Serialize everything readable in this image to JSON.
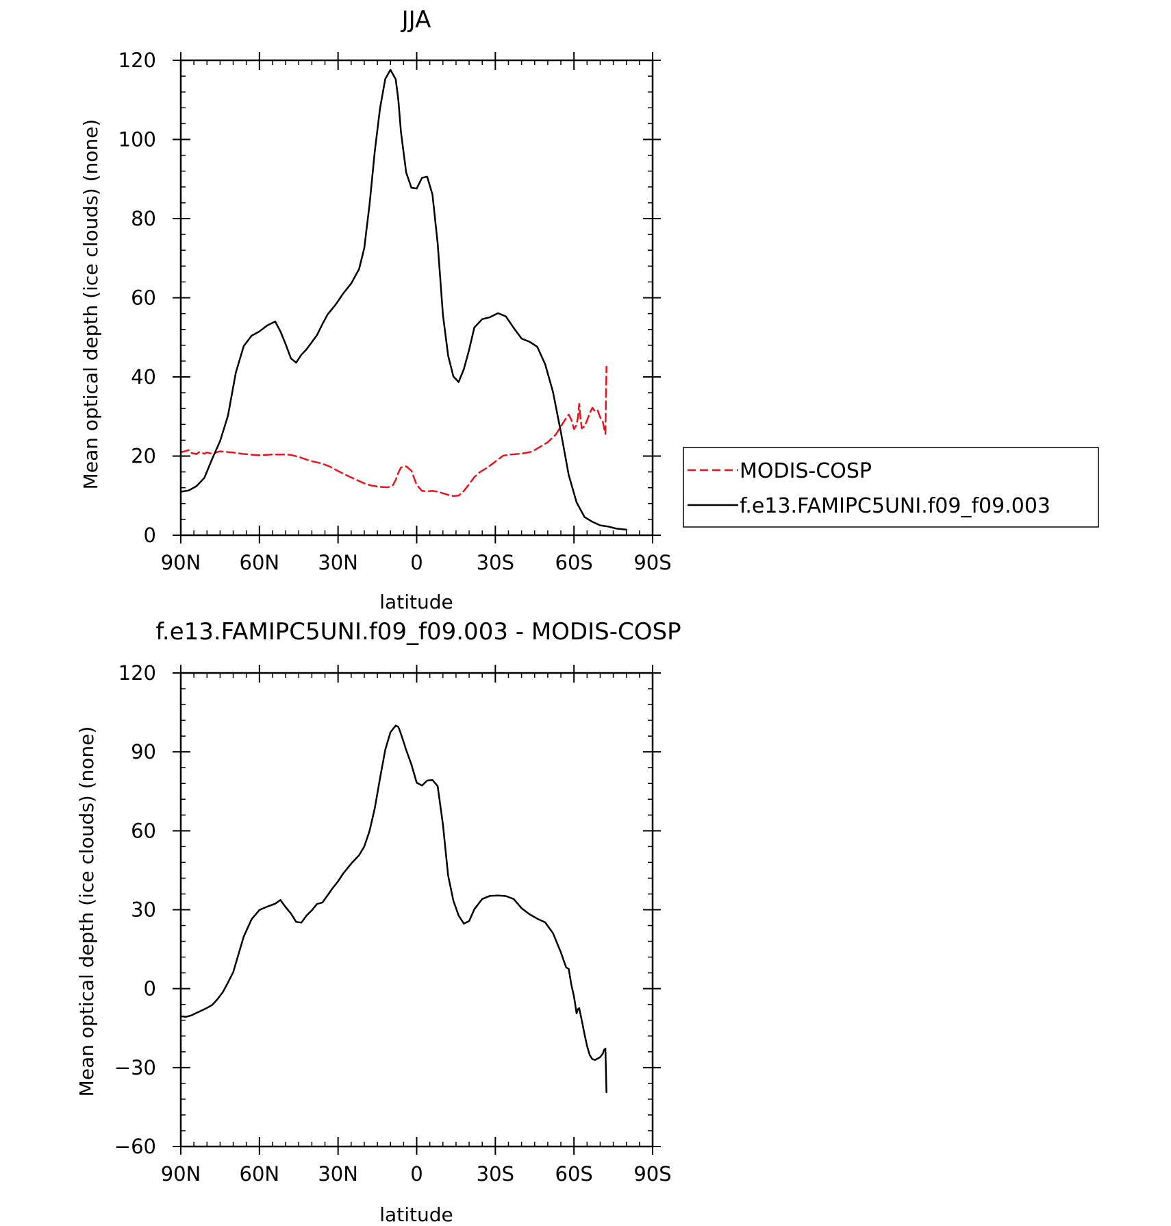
{
  "chart_data": [
    {
      "type": "line",
      "title": "JJA",
      "xlabel": "latitude",
      "ylabel": "Mean optical depth (ice clouds) (none)",
      "xlim": [
        90,
        -90
      ],
      "ylim": [
        0,
        120
      ],
      "x_ticks": [
        90,
        60,
        30,
        0,
        -30,
        -60,
        -90
      ],
      "x_tick_labels": [
        "90N",
        "60N",
        "30N",
        "0",
        "30S",
        "60S",
        "90S"
      ],
      "y_ticks": [
        0,
        20,
        40,
        60,
        80,
        100,
        120
      ],
      "y_tick_labels": [
        "0",
        "20",
        "40",
        "60",
        "80",
        "100",
        "120"
      ],
      "legend": {
        "position": "right",
        "entries": [
          "MODIS-COSP",
          "f.e13.FAMIPC5UNI.f09_f09.003"
        ]
      },
      "series": [
        {
          "name": "MODIS-COSP",
          "color": "#e8141c",
          "dash": "dashed",
          "x": [
            90,
            88.5,
            87,
            86,
            84,
            83,
            81,
            80,
            78,
            75,
            72,
            70,
            67,
            64,
            60,
            55,
            50,
            48,
            45,
            42,
            40,
            36,
            33,
            30,
            25,
            20,
            17,
            14,
            11,
            9,
            8,
            7,
            6,
            4,
            2,
            0,
            -2,
            -4,
            -6,
            -8,
            -10,
            -12,
            -14,
            -16,
            -18,
            -20,
            -22,
            -24,
            -26,
            -28,
            -30,
            -33,
            -36,
            -40,
            -44,
            -47,
            -50,
            -53,
            -55,
            -57,
            -58,
            -59,
            -60,
            -61,
            -61.5,
            -62,
            -62.5,
            -63,
            -64,
            -65,
            -66,
            -67,
            -68,
            -69,
            -70,
            -71,
            -71.5,
            -72,
            -72.4
          ],
          "values": [
            21,
            21.2,
            21.5,
            20.8,
            20.5,
            21,
            20.6,
            20.9,
            20.6,
            21.2,
            21,
            20.9,
            20.6,
            20.4,
            20.2,
            20.4,
            20.4,
            20.3,
            19.8,
            19.1,
            18.7,
            18.1,
            17.3,
            16.2,
            14.6,
            13.1,
            12.5,
            12.2,
            12.1,
            12.7,
            14,
            15.8,
            17.1,
            17.4,
            16.3,
            12.7,
            11.2,
            11.1,
            11.2,
            11,
            10.6,
            10.2,
            9.9,
            10,
            11.2,
            12.9,
            14.7,
            15.9,
            16.7,
            17.6,
            18.6,
            20.1,
            20.4,
            20.6,
            21.1,
            22.3,
            23.5,
            25.4,
            27.5,
            29.6,
            30.5,
            29.2,
            26.8,
            27.9,
            29.8,
            33.2,
            29.5,
            27,
            27.5,
            29,
            30.8,
            32.2,
            31.3,
            31.6,
            29.8,
            28.7,
            27,
            25.6,
            42.6
          ]
        },
        {
          "name": "f.e13.FAMIPC5UNI.f09_f09.003",
          "color": "#000000",
          "dash": "solid",
          "x": [
            90,
            87,
            84,
            81,
            78,
            75,
            72,
            69,
            66,
            63,
            60,
            57,
            54,
            52,
            50,
            48,
            46,
            44,
            42,
            40,
            38,
            36,
            34,
            31,
            28,
            25,
            22,
            20,
            18,
            16,
            14,
            12,
            10,
            8,
            7,
            6,
            4,
            2,
            0,
            -2,
            -4,
            -6,
            -8,
            -10,
            -12,
            -14,
            -16,
            -18,
            -20,
            -22,
            -25,
            -28,
            -31,
            -34,
            -37,
            -40,
            -43,
            -46,
            -49,
            -52,
            -55,
            -58,
            -61,
            -64,
            -67,
            -70,
            -73,
            -76,
            -80
          ],
          "values": [
            11,
            11.3,
            12.4,
            14.5,
            19.3,
            23.8,
            30.2,
            41.1,
            47.8,
            50.4,
            51.5,
            53,
            54,
            51.5,
            48.3,
            44.7,
            43.6,
            45.6,
            47,
            48.8,
            50.6,
            53.3,
            55.8,
            58.2,
            61.1,
            63.6,
            67.2,
            72.5,
            83.5,
            97,
            107.8,
            115.3,
            117.6,
            115.2,
            110,
            101.9,
            91.6,
            87.8,
            87.6,
            90.3,
            90.6,
            86.1,
            73.8,
            55.7,
            45.4,
            40.1,
            38.7,
            42,
            46.9,
            52.5,
            54.6,
            55.1,
            56.1,
            55.3,
            52.4,
            49.7,
            48.9,
            47.6,
            43.2,
            36.2,
            26.1,
            15.2,
            8.3,
            4.6,
            3.4,
            2.5,
            2.2,
            1.7,
            1.4
          ]
        }
      ]
    },
    {
      "type": "line",
      "title": "f.e13.FAMIPC5UNI.f09_f09.003 - MODIS-COSP",
      "xlabel": "latitude",
      "ylabel": "Mean optical depth (ice clouds) (none)",
      "xlim": [
        90,
        -90
      ],
      "ylim": [
        -60,
        120
      ],
      "x_ticks": [
        90,
        60,
        30,
        0,
        -30,
        -60,
        -90
      ],
      "x_tick_labels": [
        "90N",
        "60N",
        "30N",
        "0",
        "30S",
        "60S",
        "90S"
      ],
      "y_ticks": [
        -60,
        -30,
        0,
        30,
        60,
        90,
        120
      ],
      "y_tick_labels": [
        "−60",
        "−30",
        "0",
        "30",
        "60",
        "90",
        "120"
      ],
      "series": [
        {
          "name": "f.e13.FAMIPC5UNI.f09_f09.003 - MODIS-COSP",
          "color": "#000000",
          "dash": "solid",
          "x": [
            90,
            88,
            86,
            84,
            82,
            80,
            78,
            76,
            74,
            72,
            70,
            68,
            66,
            63,
            60,
            57,
            54,
            52,
            50,
            48,
            46,
            44,
            42,
            40,
            38,
            36,
            34,
            32,
            30,
            28,
            25,
            22,
            20,
            18,
            16,
            14,
            12,
            10,
            8,
            7,
            6,
            4,
            2,
            0,
            -2,
            -4,
            -6,
            -8,
            -10,
            -12,
            -14,
            -16,
            -18,
            -20,
            -22,
            -25,
            -28,
            -31,
            -34,
            -37,
            -40,
            -43,
            -46,
            -49,
            -52,
            -55,
            -57,
            -58,
            -59,
            -60,
            -61,
            -61.5,
            -62,
            -63,
            -64,
            -65,
            -66,
            -67,
            -68,
            -69,
            -70,
            -71,
            -71.5,
            -72,
            -72.4
          ],
          "values": [
            -10.5,
            -10.7,
            -10.2,
            -9.2,
            -8.3,
            -7.3,
            -6.2,
            -4,
            -1.4,
            2.3,
            6.3,
            13,
            19.8,
            26.4,
            29.9,
            31.2,
            32.3,
            33.7,
            31,
            28.6,
            25.4,
            25.1,
            27.8,
            29.8,
            32.2,
            32.7,
            35.5,
            38.3,
            40.8,
            43.8,
            47.5,
            50.7,
            54,
            59.9,
            68.6,
            79.9,
            90.8,
            97.5,
            100,
            99.5,
            96.9,
            90.7,
            85.2,
            78.3,
            77.2,
            79.1,
            79.3,
            77,
            62.4,
            43,
            33.4,
            27.8,
            24.7,
            25.7,
            30.2,
            34.1,
            35.3,
            35.4,
            35.2,
            34.1,
            30.6,
            28.3,
            26.6,
            25.2,
            21.1,
            13.8,
            8.1,
            7.5,
            1.5,
            -3,
            -9.4,
            -7.8,
            -7.4,
            -12.1,
            -17.2,
            -21.8,
            -25.2,
            -26.8,
            -27.1,
            -26.6,
            -26,
            -24.7,
            -23.2,
            -22.8,
            -39.4
          ]
        }
      ]
    }
  ]
}
